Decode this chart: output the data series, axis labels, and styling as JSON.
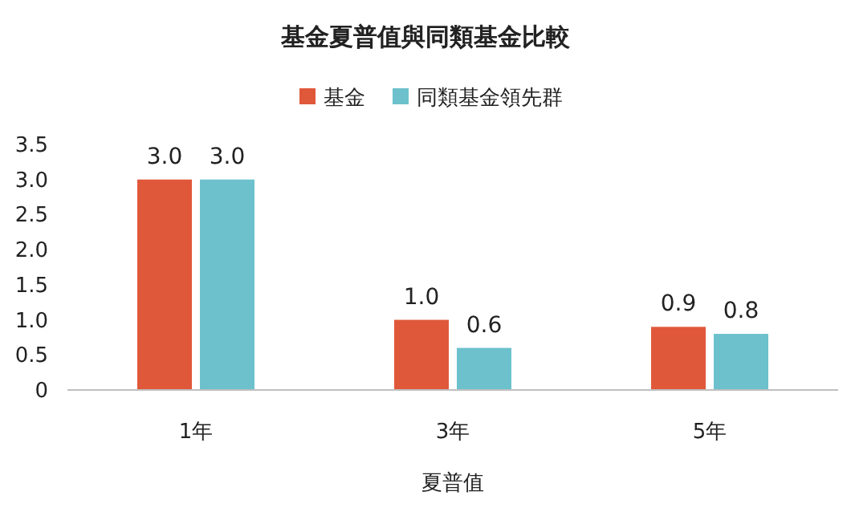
{
  "chart_data": {
    "type": "bar",
    "title": "基金夏普值與同類基金比較",
    "xlabel": "夏普值",
    "categories": [
      "1年",
      "3年",
      "5年"
    ],
    "series": [
      {
        "name": "基金",
        "color": "#e0583a",
        "values": [
          3.0,
          1.0,
          0.9
        ],
        "value_labels": [
          "3.0",
          "1.0",
          "0.9"
        ]
      },
      {
        "name": "同類基金領先群",
        "color": "#6cc1cd",
        "values": [
          3.0,
          0.6,
          0.8
        ],
        "value_labels": [
          "3.0",
          "0.6",
          "0.8"
        ]
      }
    ],
    "ylim": [
      0,
      3.5
    ],
    "yticks": [
      0,
      {
        "value": 0.5,
        "label": "0.5"
      },
      {
        "value": 1,
        "label": "1.0"
      },
      {
        "value": 1.5,
        "label": "1.5"
      },
      {
        "value": 2,
        "label": "2.0"
      },
      {
        "value": 2.5,
        "label": "2.5"
      },
      {
        "value": 3,
        "label": "3.0"
      },
      {
        "value": 3.5,
        "label": "3.5"
      }
    ],
    "legend": "top",
    "grid": false
  }
}
